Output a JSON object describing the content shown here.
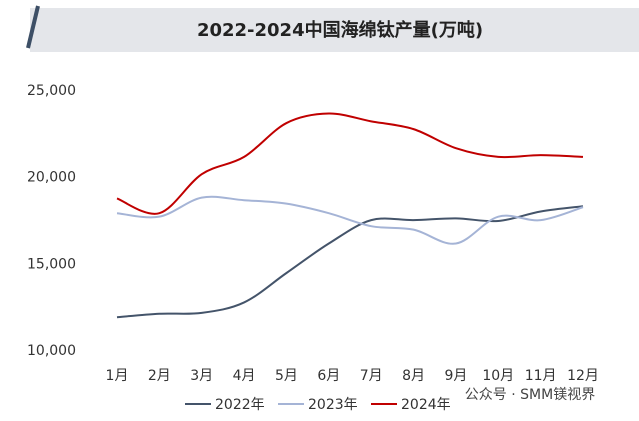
{
  "chart_data": {
    "type": "line",
    "title": "2022-2024中国海绵钛产量(万吨)",
    "categories": [
      "1月",
      "2月",
      "3月",
      "4月",
      "5月",
      "6月",
      "7月",
      "8月",
      "9月",
      "10月",
      "11月",
      "12月"
    ],
    "series": [
      {
        "name": "2022年",
        "color": "#44546a",
        "values": [
          11950,
          12150,
          12200,
          12800,
          14500,
          16200,
          17550,
          17550,
          17650,
          17500,
          18050,
          18350
        ]
      },
      {
        "name": "2023年",
        "color": "#a5b4d6",
        "values": [
          17950,
          17750,
          18850,
          18700,
          18500,
          17950,
          17200,
          17000,
          16200,
          17750,
          17550,
          18300
        ]
      },
      {
        "name": "2024年",
        "color": "#c00000",
        "values": [
          18800,
          17950,
          20200,
          21200,
          23150,
          23700,
          23250,
          22800,
          21700,
          21200,
          21300,
          21200
        ]
      }
    ],
    "ylim": [
      10000,
      25000
    ],
    "yticks": [
      {
        "value": 10000,
        "label": "10,000"
      },
      {
        "value": 15000,
        "label": "15,000"
      },
      {
        "value": 20000,
        "label": "20,000"
      },
      {
        "value": 25000,
        "label": "25,000"
      }
    ],
    "grid": false,
    "watermark": "公众号 · SMM镁视界"
  }
}
